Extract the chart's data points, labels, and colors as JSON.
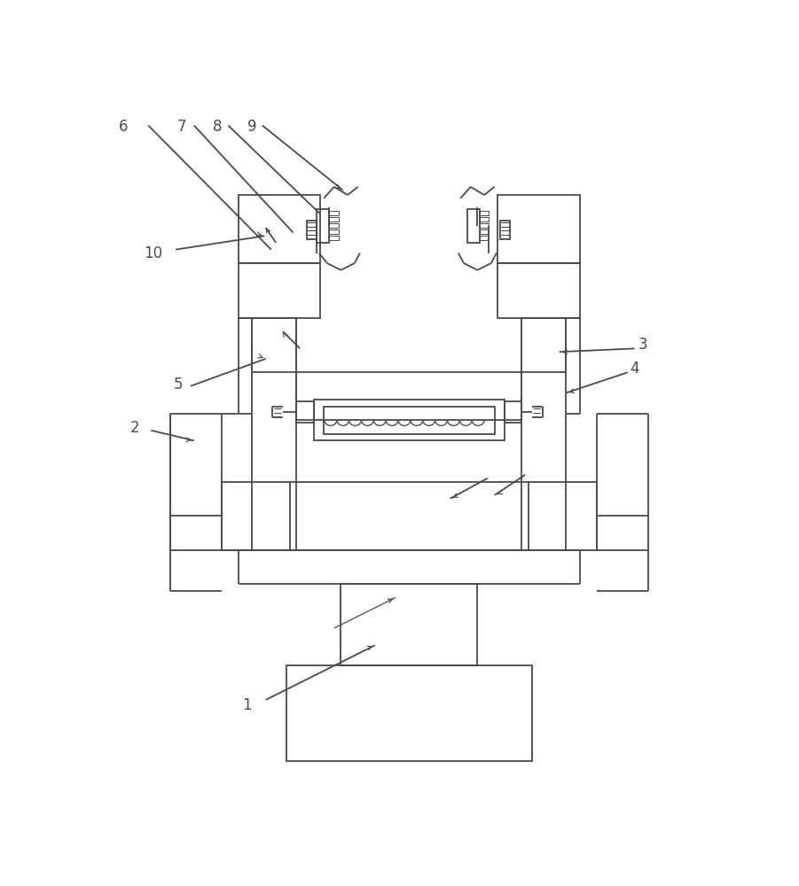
{
  "bg_color": "#ffffff",
  "line_color": "#4a4a4a",
  "lw": 1.3,
  "fig_width": 9.01,
  "fig_height": 10.0
}
